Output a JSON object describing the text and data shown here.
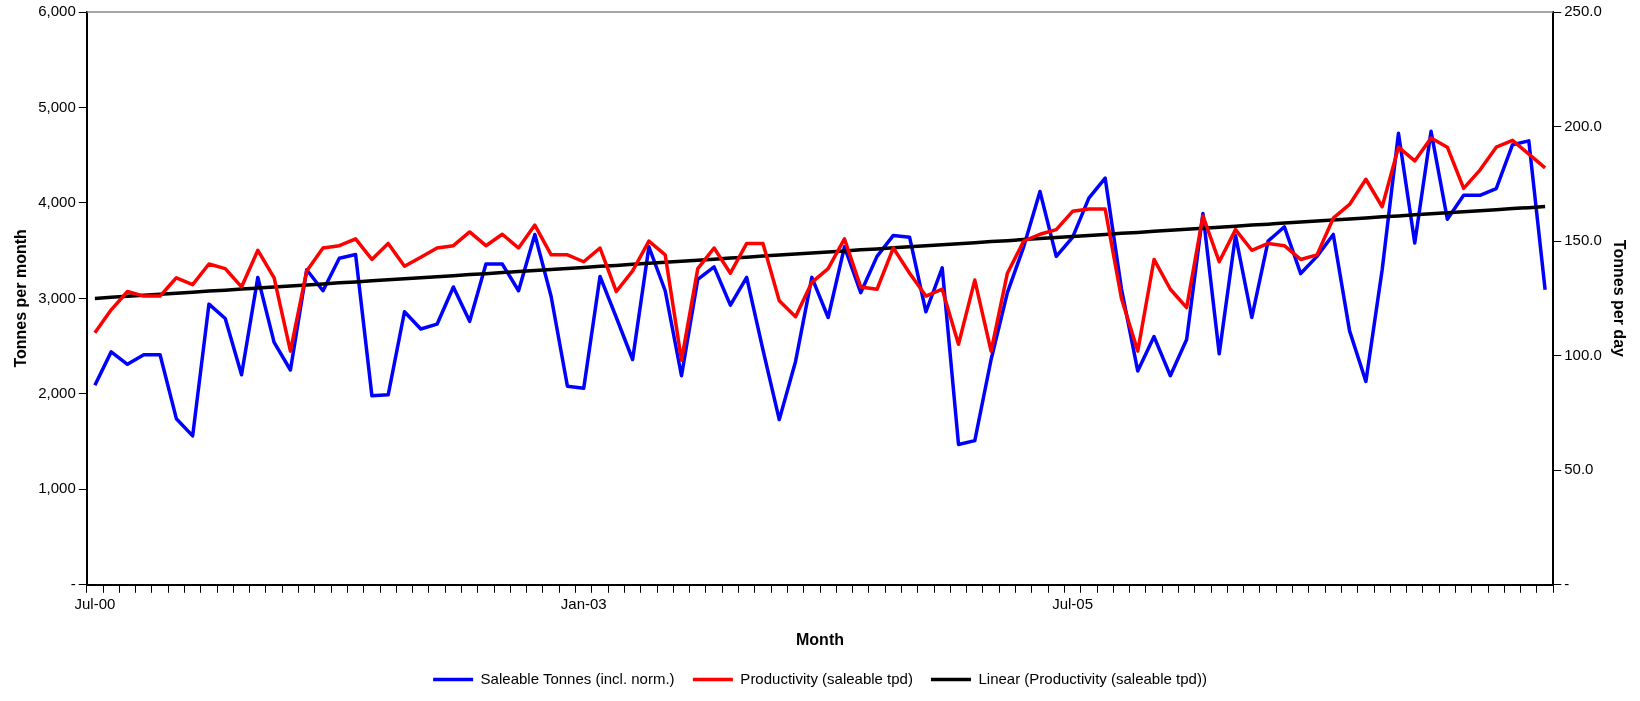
{
  "chart_data": {
    "type": "line",
    "xlabel": "Month",
    "ylabel": "Tonnes per month",
    "y2label": "Tonnes per day",
    "categories": [
      "Jul-00",
      null,
      null,
      null,
      null,
      null,
      null,
      null,
      null,
      null,
      null,
      null,
      null,
      null,
      null,
      null,
      null,
      null,
      null,
      null,
      null,
      null,
      null,
      null,
      null,
      null,
      null,
      null,
      null,
      null,
      "Jan-03",
      null,
      null,
      null,
      null,
      null,
      null,
      null,
      null,
      null,
      null,
      null,
      null,
      null,
      null,
      null,
      null,
      null,
      null,
      null,
      null,
      null,
      null,
      null,
      null,
      null,
      null,
      null,
      null,
      null,
      "Jul-05",
      null,
      null,
      null,
      null,
      null,
      null,
      null,
      null,
      null,
      null,
      null,
      null,
      null,
      null,
      null,
      null,
      null,
      null,
      null,
      null,
      null,
      null,
      null,
      null,
      null,
      null,
      null,
      null,
      null
    ],
    "ylim": [
      0,
      6000
    ],
    "yticks": [
      {
        "value": 0,
        "label": "-"
      },
      {
        "value": 1000,
        "label": "1,000"
      },
      {
        "value": 2000,
        "label": "2,000"
      },
      {
        "value": 3000,
        "label": "3,000"
      },
      {
        "value": 4000,
        "label": "4,000"
      },
      {
        "value": 5000,
        "label": "5,000"
      },
      {
        "value": 6000,
        "label": "6,000"
      }
    ],
    "y2lim": [
      0,
      250
    ],
    "y2ticks": [
      {
        "value": 0,
        "label": "-"
      },
      {
        "value": 50,
        "label": "50.0"
      },
      {
        "value": 100,
        "label": "100.0"
      },
      {
        "value": 150,
        "label": "150.0"
      },
      {
        "value": 200,
        "label": "200.0"
      },
      {
        "value": 250,
        "label": "250.0"
      }
    ],
    "grid": false,
    "legend": "bottom",
    "marker": "none",
    "line_style": "solid",
    "series": [
      {
        "name": "Saleable Tonnes (incl. norm.)",
        "color": "#0000ff",
        "values": [
          2090,
          2440,
          2310,
          2410,
          2410,
          1740,
          1560,
          2940,
          2790,
          2200,
          3220,
          2540,
          2250,
          3300,
          3080,
          3420,
          3460,
          1980,
          1990,
          2860,
          2680,
          2730,
          3120,
          2760,
          3360,
          3360,
          3080,
          3670,
          3020,
          2080,
          2060,
          3230,
          2800,
          2360,
          3540,
          3080,
          2190,
          3200,
          3330,
          2930,
          3220,
          2460,
          1730,
          2340,
          3220,
          2800,
          3540,
          3060,
          3440,
          3660,
          3640,
          2860,
          3320,
          1470,
          1510,
          2360,
          3060,
          3540,
          4120,
          3440,
          3640,
          4050,
          4260,
          3100,
          2240,
          2600,
          2190,
          2570,
          3890,
          2420,
          3660,
          2800,
          3600,
          3750,
          3260,
          3440,
          3670,
          2660,
          2130,
          3300,
          4730,
          3580,
          4750,
          3830,
          4080,
          4080,
          4150,
          4610,
          4650,
          3090
        ]
      },
      {
        "name": "Productivity (saleable tpd)",
        "color": "#ff0000",
        "axis": "y2",
        "values": [
          110,
          120,
          128,
          126,
          126,
          134,
          131,
          140,
          138,
          130,
          146,
          134,
          102,
          137,
          147,
          148,
          151,
          142,
          149,
          139,
          143,
          147,
          148,
          154,
          148,
          153,
          147,
          157,
          144,
          144,
          141,
          147,
          128,
          137,
          150,
          144,
          98,
          138,
          147,
          136,
          149,
          149,
          124,
          117,
          132,
          138,
          151,
          130,
          129,
          147,
          136,
          126,
          129,
          105,
          133,
          102,
          136,
          150,
          153,
          155,
          163,
          164,
          164,
          125,
          102,
          142,
          129,
          121,
          161,
          141,
          155,
          146,
          149,
          148,
          142,
          144,
          160,
          166,
          177,
          165,
          191,
          185,
          195,
          191,
          173,
          181,
          191,
          194,
          188,
          182
        ]
      },
      {
        "name": "Linear (Productivity (saleable tpd))",
        "color": "#000000",
        "axis": "y2",
        "values": [
          125,
          125.5,
          125.9,
          126.4,
          126.8,
          127.3,
          127.7,
          128.2,
          128.6,
          129.1,
          129.5,
          130,
          130.4,
          130.9,
          131.3,
          131.8,
          132.2,
          132.7,
          133.1,
          133.6,
          134,
          134.5,
          134.9,
          135.4,
          135.8,
          136.3,
          136.7,
          137.2,
          137.6,
          138.1,
          138.5,
          139,
          139.4,
          139.9,
          140.3,
          140.8,
          141.2,
          141.7,
          142.1,
          142.6,
          143,
          143.5,
          143.9,
          144.4,
          144.8,
          145.3,
          145.7,
          146.2,
          146.6,
          147.1,
          147.5,
          148,
          148.4,
          148.9,
          149.3,
          149.8,
          150.2,
          150.7,
          151.1,
          151.6,
          152,
          152.5,
          152.9,
          153.4,
          153.8,
          154.3,
          154.7,
          155.2,
          155.6,
          156.1,
          156.5,
          157,
          157.4,
          157.9,
          158.3,
          158.8,
          159.2,
          159.7,
          160.1,
          160.6,
          161,
          161.5,
          161.9,
          162.4,
          162.8,
          163.3,
          163.7,
          164.2,
          164.6,
          165.1
        ]
      }
    ]
  }
}
